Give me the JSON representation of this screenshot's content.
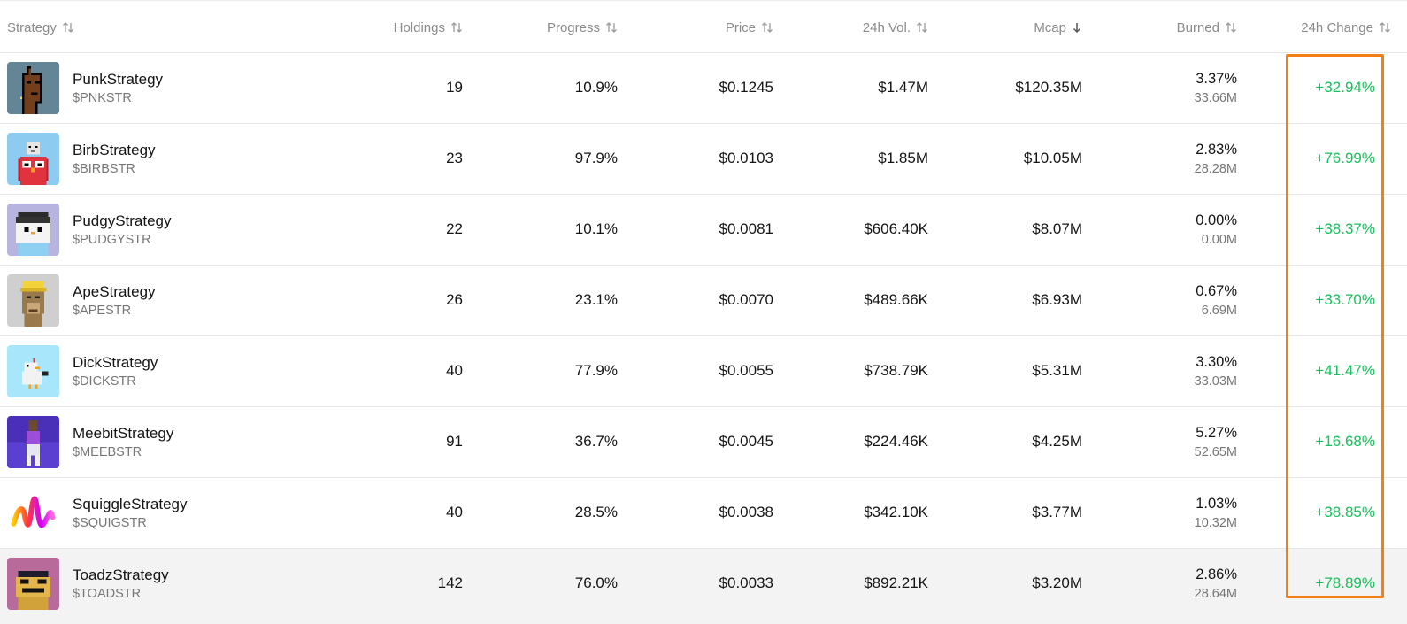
{
  "header": {
    "strategy": "Strategy",
    "holdings": "Holdings",
    "progress": "Progress",
    "price": "Price",
    "vol24h": "24h Vol.",
    "mcap": "Mcap",
    "burned": "Burned",
    "change24h": "24h Change",
    "sort_active": "mcap",
    "sort_direction": "desc"
  },
  "rows": [
    {
      "name": "PunkStrategy",
      "ticker": "$PNKSTR",
      "holdings": "19",
      "progress": "10.9%",
      "price": "$0.1245",
      "vol": "$1.47M",
      "mcap": "$120.35M",
      "burned_pct": "3.37%",
      "burned_amt": "33.66M",
      "change": "+32.94%",
      "avatar_icon": "punk-avatar-icon"
    },
    {
      "name": "BirbStrategy",
      "ticker": "$BIRBSTR",
      "holdings": "23",
      "progress": "97.9%",
      "price": "$0.0103",
      "vol": "$1.85M",
      "mcap": "$10.05M",
      "burned_pct": "2.83%",
      "burned_amt": "28.28M",
      "change": "+76.99%",
      "avatar_icon": "birb-avatar-icon"
    },
    {
      "name": "PudgyStrategy",
      "ticker": "$PUDGYSTR",
      "holdings": "22",
      "progress": "10.1%",
      "price": "$0.0081",
      "vol": "$606.40K",
      "mcap": "$8.07M",
      "burned_pct": "0.00%",
      "burned_amt": "0.00M",
      "change": "+38.37%",
      "avatar_icon": "pudgy-avatar-icon"
    },
    {
      "name": "ApeStrategy",
      "ticker": "$APESTR",
      "holdings": "26",
      "progress": "23.1%",
      "price": "$0.0070",
      "vol": "$489.66K",
      "mcap": "$6.93M",
      "burned_pct": "0.67%",
      "burned_amt": "6.69M",
      "change": "+33.70%",
      "avatar_icon": "ape-avatar-icon"
    },
    {
      "name": "DickStrategy",
      "ticker": "$DICKSTR",
      "holdings": "40",
      "progress": "77.9%",
      "price": "$0.0055",
      "vol": "$738.79K",
      "mcap": "$5.31M",
      "burned_pct": "3.30%",
      "burned_amt": "33.03M",
      "change": "+41.47%",
      "avatar_icon": "dick-avatar-icon"
    },
    {
      "name": "MeebitStrategy",
      "ticker": "$MEEBSTR",
      "holdings": "91",
      "progress": "36.7%",
      "price": "$0.0045",
      "vol": "$224.46K",
      "mcap": "$4.25M",
      "burned_pct": "5.27%",
      "burned_amt": "52.65M",
      "change": "+16.68%",
      "avatar_icon": "meebit-avatar-icon"
    },
    {
      "name": "SquiggleStrategy",
      "ticker": "$SQUIGSTR",
      "holdings": "40",
      "progress": "28.5%",
      "price": "$0.0038",
      "vol": "$342.10K",
      "mcap": "$3.77M",
      "burned_pct": "1.03%",
      "burned_amt": "10.32M",
      "change": "+38.85%",
      "avatar_icon": "squiggle-avatar-icon"
    },
    {
      "name": "ToadzStrategy",
      "ticker": "$TOADSTR",
      "holdings": "142",
      "progress": "76.0%",
      "price": "$0.0033",
      "vol": "$892.21K",
      "mcap": "$3.20M",
      "burned_pct": "2.86%",
      "burned_amt": "28.64M",
      "change": "+78.89%",
      "avatar_icon": "toadz-avatar-icon"
    }
  ],
  "colors": {
    "positive": "#16c25a",
    "header_text": "#8b8b8b",
    "highlight_box": "#f57f17",
    "row_hover": "#f3f3f3"
  },
  "highlighted_row": "ToadzStrategy"
}
